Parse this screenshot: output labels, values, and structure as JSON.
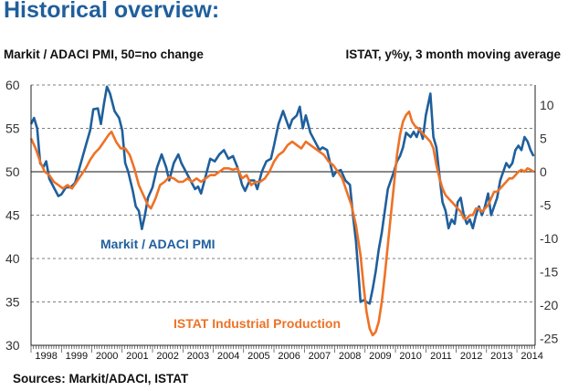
{
  "header": {
    "title": "Historical overview:",
    "left_axis_caption": "Markit / ADACI PMI, 50=no change",
    "right_axis_caption": "ISTAT, y%y, 3 month moving average"
  },
  "footer": {
    "sources": "Sources: Markit/ADACI, ISTAT"
  },
  "colors": {
    "pmi": "#1f5f9c",
    "istat": "#ee7226",
    "grid": "#555555",
    "axis": "#222222"
  },
  "chart_data": {
    "type": "line",
    "title": "Historical overview:",
    "x_range": [
      1998.0,
      2014.6
    ],
    "x_tick_labels": [
      "1998",
      "1999",
      "2000",
      "2001",
      "2002",
      "2003",
      "2004",
      "2005",
      "2006",
      "2007",
      "2008",
      "2009",
      "2010",
      "2011",
      "2012",
      "2013",
      "2014"
    ],
    "left_axis": {
      "label": "Markit / ADACI PMI, 50=no change",
      "ylim": [
        30,
        60
      ],
      "ticks": [
        30,
        35,
        40,
        45,
        50,
        55,
        60
      ]
    },
    "right_axis": {
      "label": "ISTAT, y%y, 3 month moving average",
      "ylim": [
        -26,
        13
      ],
      "ticks": [
        -25,
        -20,
        -15,
        -10,
        -5,
        0,
        5,
        10
      ]
    },
    "reference_line": {
      "axis": "left",
      "value": 50
    },
    "annotations": [
      {
        "text": "Markit / ADACI PMI",
        "series": "pmi"
      },
      {
        "text": "ISTAT Industrial Production",
        "series": "istat"
      }
    ],
    "series": [
      {
        "name": "Markit / ADACI PMI",
        "axis": "left",
        "points": [
          [
            1998.0,
            55.5
          ],
          [
            1998.1,
            56.2
          ],
          [
            1998.2,
            55.0
          ],
          [
            1998.3,
            51.0
          ],
          [
            1998.4,
            50.5
          ],
          [
            1998.5,
            51.2
          ],
          [
            1998.6,
            49.2
          ],
          [
            1998.75,
            48.2
          ],
          [
            1998.9,
            47.2
          ],
          [
            1999.0,
            47.4
          ],
          [
            1999.15,
            48.2
          ],
          [
            1999.3,
            48.2
          ],
          [
            1999.45,
            48.7
          ],
          [
            1999.6,
            50.5
          ],
          [
            1999.8,
            53.0
          ],
          [
            1999.95,
            54.8
          ],
          [
            2000.05,
            57.2
          ],
          [
            2000.2,
            57.3
          ],
          [
            2000.3,
            55.5
          ],
          [
            2000.4,
            57.8
          ],
          [
            2000.5,
            59.8
          ],
          [
            2000.6,
            59.0
          ],
          [
            2000.75,
            57.0
          ],
          [
            2000.9,
            56.2
          ],
          [
            2001.0,
            54.8
          ],
          [
            2001.1,
            51.0
          ],
          [
            2001.2,
            50.0
          ],
          [
            2001.35,
            47.8
          ],
          [
            2001.45,
            46.0
          ],
          [
            2001.55,
            45.5
          ],
          [
            2001.65,
            43.4
          ],
          [
            2001.75,
            45.0
          ],
          [
            2001.85,
            47.0
          ],
          [
            2002.0,
            48.2
          ],
          [
            2002.15,
            50.5
          ],
          [
            2002.3,
            52.0
          ],
          [
            2002.45,
            50.5
          ],
          [
            2002.55,
            49.0
          ],
          [
            2002.7,
            51.0
          ],
          [
            2002.85,
            52.0
          ],
          [
            2002.95,
            51.0
          ],
          [
            2003.1,
            50.0
          ],
          [
            2003.25,
            49.0
          ],
          [
            2003.4,
            48.0
          ],
          [
            2003.5,
            48.3
          ],
          [
            2003.6,
            47.5
          ],
          [
            2003.75,
            49.5
          ],
          [
            2003.9,
            51.5
          ],
          [
            2004.05,
            51.2
          ],
          [
            2004.2,
            52.0
          ],
          [
            2004.35,
            52.5
          ],
          [
            2004.5,
            51.5
          ],
          [
            2004.65,
            51.8
          ],
          [
            2004.8,
            50.5
          ],
          [
            2004.95,
            48.5
          ],
          [
            2005.05,
            47.8
          ],
          [
            2005.2,
            49.0
          ],
          [
            2005.35,
            49.0
          ],
          [
            2005.45,
            48.0
          ],
          [
            2005.6,
            50.0
          ],
          [
            2005.75,
            51.2
          ],
          [
            2005.9,
            51.5
          ],
          [
            2006.0,
            53.0
          ],
          [
            2006.15,
            55.5
          ],
          [
            2006.3,
            57.0
          ],
          [
            2006.4,
            56.0
          ],
          [
            2006.5,
            55.0
          ],
          [
            2006.6,
            56.0
          ],
          [
            2006.75,
            56.5
          ],
          [
            2006.85,
            57.5
          ],
          [
            2006.95,
            55.0
          ],
          [
            2007.05,
            56.5
          ],
          [
            2007.2,
            54.5
          ],
          [
            2007.35,
            53.5
          ],
          [
            2007.5,
            52.5
          ],
          [
            2007.6,
            52.8
          ],
          [
            2007.75,
            52.5
          ],
          [
            2007.85,
            51.0
          ],
          [
            2007.95,
            49.5
          ],
          [
            2008.05,
            50.0
          ],
          [
            2008.2,
            50.2
          ],
          [
            2008.35,
            49.0
          ],
          [
            2008.5,
            48.5
          ],
          [
            2008.6,
            45.0
          ],
          [
            2008.7,
            42.0
          ],
          [
            2008.8,
            37.5
          ],
          [
            2008.85,
            35.0
          ],
          [
            2008.95,
            35.2
          ],
          [
            2009.05,
            35.0
          ],
          [
            2009.15,
            34.8
          ],
          [
            2009.25,
            36.5
          ],
          [
            2009.35,
            38.5
          ],
          [
            2009.45,
            41.0
          ],
          [
            2009.55,
            43.0
          ],
          [
            2009.65,
            45.5
          ],
          [
            2009.75,
            48.0
          ],
          [
            2009.85,
            49.0
          ],
          [
            2009.95,
            50.0
          ],
          [
            2010.05,
            51.2
          ],
          [
            2010.15,
            51.8
          ],
          [
            2010.25,
            52.8
          ],
          [
            2010.35,
            54.5
          ],
          [
            2010.5,
            54.0
          ],
          [
            2010.6,
            54.6
          ],
          [
            2010.7,
            54.0
          ],
          [
            2010.8,
            55.0
          ],
          [
            2010.9,
            53.8
          ],
          [
            2011.0,
            56.5
          ],
          [
            2011.15,
            59.0
          ],
          [
            2011.25,
            54.0
          ],
          [
            2011.35,
            52.8
          ],
          [
            2011.45,
            49.5
          ],
          [
            2011.55,
            46.5
          ],
          [
            2011.65,
            45.5
          ],
          [
            2011.75,
            43.5
          ],
          [
            2011.85,
            44.5
          ],
          [
            2011.95,
            44.0
          ],
          [
            2012.05,
            46.5
          ],
          [
            2012.15,
            47.0
          ],
          [
            2012.25,
            45.0
          ],
          [
            2012.35,
            44.0
          ],
          [
            2012.45,
            44.5
          ],
          [
            2012.55,
            43.5
          ],
          [
            2012.65,
            45.0
          ],
          [
            2012.75,
            46.0
          ],
          [
            2012.85,
            45.0
          ],
          [
            2012.95,
            46.0
          ],
          [
            2013.05,
            47.5
          ],
          [
            2013.15,
            45.0
          ],
          [
            2013.25,
            46.0
          ],
          [
            2013.35,
            47.0
          ],
          [
            2013.45,
            49.0
          ],
          [
            2013.55,
            50.0
          ],
          [
            2013.65,
            51.0
          ],
          [
            2013.75,
            50.5
          ],
          [
            2013.85,
            51.0
          ],
          [
            2013.95,
            52.5
          ],
          [
            2014.05,
            53.0
          ],
          [
            2014.15,
            52.5
          ],
          [
            2014.25,
            54.0
          ],
          [
            2014.35,
            53.5
          ],
          [
            2014.45,
            52.5
          ],
          [
            2014.55,
            51.8
          ]
        ]
      },
      {
        "name": "ISTAT Industrial Production",
        "axis": "right",
        "points": [
          [
            1998.0,
            5.0
          ],
          [
            1998.15,
            3.5
          ],
          [
            1998.3,
            1.5
          ],
          [
            1998.45,
            0.0
          ],
          [
            1998.6,
            -0.5
          ],
          [
            1998.75,
            -1.5
          ],
          [
            1998.9,
            -2.0
          ],
          [
            1999.05,
            -2.5
          ],
          [
            1999.2,
            -2.0
          ],
          [
            1999.35,
            -2.5
          ],
          [
            1999.5,
            -1.5
          ],
          [
            1999.65,
            -0.5
          ],
          [
            1999.8,
            0.5
          ],
          [
            1999.95,
            1.8
          ],
          [
            2000.1,
            2.8
          ],
          [
            2000.25,
            3.5
          ],
          [
            2000.4,
            4.5
          ],
          [
            2000.55,
            5.5
          ],
          [
            2000.65,
            6.0
          ],
          [
            2000.8,
            4.5
          ],
          [
            2000.95,
            3.5
          ],
          [
            2001.1,
            3.5
          ],
          [
            2001.25,
            2.5
          ],
          [
            2001.4,
            0.5
          ],
          [
            2001.55,
            -2.0
          ],
          [
            2001.7,
            -3.5
          ],
          [
            2001.85,
            -5.0
          ],
          [
            2001.95,
            -5.5
          ],
          [
            2002.1,
            -4.0
          ],
          [
            2002.25,
            -2.0
          ],
          [
            2002.4,
            -1.5
          ],
          [
            2002.55,
            -0.8
          ],
          [
            2002.7,
            -1.0
          ],
          [
            2002.85,
            -1.5
          ],
          [
            2003.0,
            -1.5
          ],
          [
            2003.15,
            -1.0
          ],
          [
            2003.3,
            -1.5
          ],
          [
            2003.45,
            -1.0
          ],
          [
            2003.6,
            -1.5
          ],
          [
            2003.75,
            -1.0
          ],
          [
            2003.9,
            -0.5
          ],
          [
            2004.05,
            -0.5
          ],
          [
            2004.2,
            0.0
          ],
          [
            2004.35,
            0.5
          ],
          [
            2004.5,
            0.5
          ],
          [
            2004.65,
            0.3
          ],
          [
            2004.8,
            0.5
          ],
          [
            2004.95,
            -1.0
          ],
          [
            2005.1,
            -0.5
          ],
          [
            2005.25,
            -2.0
          ],
          [
            2005.4,
            -1.5
          ],
          [
            2005.55,
            -1.5
          ],
          [
            2005.7,
            -1.0
          ],
          [
            2005.85,
            0.0
          ],
          [
            2006.0,
            1.5
          ],
          [
            2006.15,
            2.5
          ],
          [
            2006.3,
            3.0
          ],
          [
            2006.45,
            4.0
          ],
          [
            2006.6,
            4.5
          ],
          [
            2006.75,
            4.0
          ],
          [
            2006.9,
            3.5
          ],
          [
            2007.05,
            4.5
          ],
          [
            2007.2,
            4.0
          ],
          [
            2007.35,
            3.5
          ],
          [
            2007.5,
            3.0
          ],
          [
            2007.65,
            2.5
          ],
          [
            2007.8,
            1.5
          ],
          [
            2007.95,
            1.0
          ],
          [
            2008.1,
            0.0
          ],
          [
            2008.25,
            -1.0
          ],
          [
            2008.4,
            -3.0
          ],
          [
            2008.55,
            -5.0
          ],
          [
            2008.7,
            -8.0
          ],
          [
            2008.85,
            -12.5
          ],
          [
            2008.95,
            -17.0
          ],
          [
            2009.05,
            -21.0
          ],
          [
            2009.15,
            -23.5
          ],
          [
            2009.25,
            -24.5
          ],
          [
            2009.35,
            -24.0
          ],
          [
            2009.45,
            -22.5
          ],
          [
            2009.55,
            -19.5
          ],
          [
            2009.65,
            -15.5
          ],
          [
            2009.75,
            -11.0
          ],
          [
            2009.85,
            -6.5
          ],
          [
            2009.95,
            -2.0
          ],
          [
            2010.05,
            2.5
          ],
          [
            2010.15,
            5.5
          ],
          [
            2010.25,
            7.5
          ],
          [
            2010.35,
            8.5
          ],
          [
            2010.45,
            9.0
          ],
          [
            2010.55,
            7.5
          ],
          [
            2010.65,
            6.8
          ],
          [
            2010.75,
            6.5
          ],
          [
            2010.85,
            6.0
          ],
          [
            2010.95,
            5.5
          ],
          [
            2011.05,
            5.0
          ],
          [
            2011.15,
            4.5
          ],
          [
            2011.25,
            3.5
          ],
          [
            2011.35,
            1.0
          ],
          [
            2011.45,
            -1.0
          ],
          [
            2011.55,
            -2.5
          ],
          [
            2011.65,
            -3.5
          ],
          [
            2011.75,
            -4.0
          ],
          [
            2011.85,
            -4.5
          ],
          [
            2011.95,
            -5.0
          ],
          [
            2012.05,
            -5.5
          ],
          [
            2012.15,
            -6.0
          ],
          [
            2012.25,
            -7.0
          ],
          [
            2012.35,
            -7.0
          ],
          [
            2012.45,
            -6.5
          ],
          [
            2012.55,
            -6.5
          ],
          [
            2012.65,
            -5.5
          ],
          [
            2012.75,
            -5.5
          ],
          [
            2012.85,
            -6.0
          ],
          [
            2012.95,
            -5.5
          ],
          [
            2013.05,
            -5.0
          ],
          [
            2013.15,
            -4.0
          ],
          [
            2013.25,
            -3.0
          ],
          [
            2013.35,
            -3.0
          ],
          [
            2013.45,
            -2.5
          ],
          [
            2013.55,
            -2.0
          ],
          [
            2013.65,
            -1.5
          ],
          [
            2013.75,
            -1.0
          ],
          [
            2013.85,
            -1.0
          ],
          [
            2013.95,
            -0.5
          ],
          [
            2014.05,
            0.0
          ],
          [
            2014.15,
            0.3
          ],
          [
            2014.25,
            0.0
          ],
          [
            2014.35,
            0.5
          ],
          [
            2014.45,
            0.3
          ],
          [
            2014.55,
            0.0
          ]
        ]
      }
    ]
  }
}
